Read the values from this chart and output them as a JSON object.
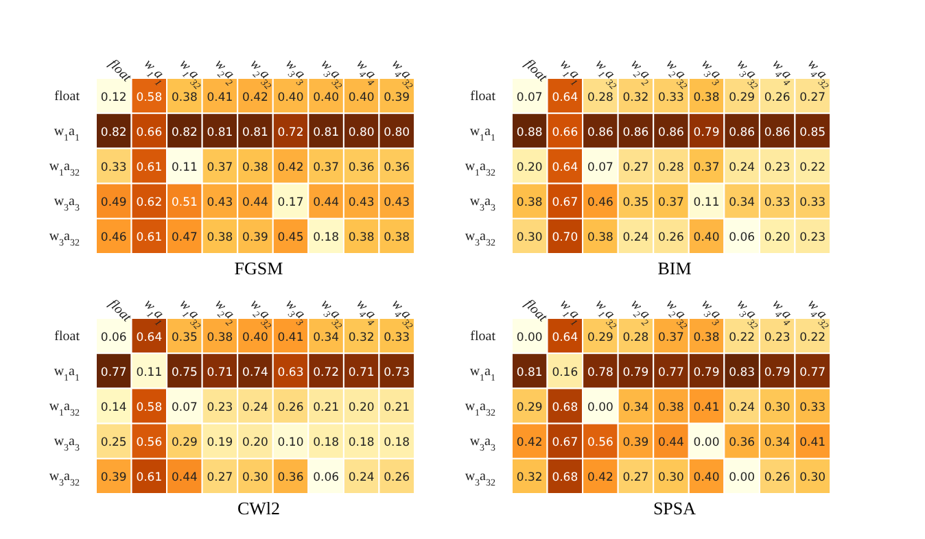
{
  "chart_data": [
    {
      "type": "heatmap",
      "title": "FGSM",
      "categories": [
        "float",
        "w$_{1}$a$_{1}$",
        "w$_{1}$a$_{32}$",
        "w$_{2}$a$_{2}$",
        "w$_{2}$a$_{32}$",
        "w$_{3}$a$_{3}$",
        "w$_{3}$a$_{32}$",
        "w$_{4}$a$_{4}$",
        "w$_{4}$a$_{32}$"
      ],
      "y_categories": [
        "float",
        "w$_{1}$a$_{1}$",
        "w$_{1}$a$_{32}$",
        "w$_{3}$a$_{3}$",
        "w$_{3}$a$_{32}$"
      ],
      "cells": [
        [
          0.12,
          0.58,
          0.38,
          0.41,
          0.42,
          0.4,
          0.4,
          0.4,
          0.39
        ],
        [
          0.82,
          0.66,
          0.82,
          0.81,
          0.81,
          0.72,
          0.81,
          0.8,
          0.8
        ],
        [
          0.33,
          0.61,
          0.11,
          0.37,
          0.38,
          0.42,
          0.37,
          0.36,
          0.36
        ],
        [
          0.49,
          0.62,
          0.51,
          0.43,
          0.44,
          0.17,
          0.44,
          0.43,
          0.43
        ],
        [
          0.46,
          0.61,
          0.47,
          0.38,
          0.39,
          0.45,
          0.18,
          0.38,
          0.38
        ]
      ],
      "cell_labels": [
        [
          "0.12",
          "0.58",
          "0.38",
          "0.41",
          "0.42",
          "0.40",
          "0.40",
          "0.40",
          "0.39"
        ],
        [
          "0.82",
          "0.66",
          "0.82",
          "0.81",
          "0.81",
          "0.72",
          "0.81",
          "0.80",
          "0.80"
        ],
        [
          "0.33",
          "0.61",
          "0.11",
          "0.37",
          "0.38",
          "0.42",
          "0.37",
          "0.36",
          "0.36"
        ],
        [
          "0.49",
          "0.62",
          "0.51",
          "0.43",
          "0.44",
          "0.17",
          "0.44",
          "0.43",
          "0.43"
        ],
        [
          "0.46",
          "0.61",
          "0.47",
          "0.38",
          "0.39",
          "0.45",
          "0.18",
          "0.38",
          "0.38"
        ]
      ]
    },
    {
      "type": "heatmap",
      "title": "BIM",
      "categories": [
        "float",
        "w$_{1}$a$_{1}$",
        "w$_{1}$a$_{32}$",
        "w$_{2}$a$_{2}$",
        "w$_{2}$a$_{32}$",
        "w$_{3}$a$_{3}$",
        "w$_{3}$a$_{32}$",
        "w$_{4}$a$_{4}$",
        "w$_{4}$a$_{32}$"
      ],
      "y_categories": [
        "float",
        "w$_{1}$a$_{1}$",
        "w$_{1}$a$_{32}$",
        "w$_{3}$a$_{3}$",
        "w$_{3}$a$_{32}$"
      ],
      "cells": [
        [
          0.07,
          0.64,
          0.28,
          0.32,
          0.33,
          0.38,
          0.29,
          0.26,
          0.27
        ],
        [
          0.88,
          0.66,
          0.86,
          0.86,
          0.86,
          0.79,
          0.86,
          0.86,
          0.85
        ],
        [
          0.2,
          0.64,
          0.07,
          0.27,
          0.28,
          0.37,
          0.24,
          0.23,
          0.22
        ],
        [
          0.38,
          0.67,
          0.46,
          0.35,
          0.37,
          0.11,
          0.34,
          0.33,
          0.33
        ],
        [
          0.3,
          0.7,
          0.38,
          0.24,
          0.26,
          0.4,
          0.06,
          0.2,
          0.23
        ]
      ],
      "cell_labels": [
        [
          "0.07",
          "0.64",
          "0.28",
          "0.32",
          "0.33",
          "0.38",
          "0.29",
          "0.26",
          "0.27"
        ],
        [
          "0.88",
          "0.66",
          "0.86",
          "0.86",
          "0.86",
          "0.79",
          "0.86",
          "0.86",
          "0.85"
        ],
        [
          "0.20",
          "0.64",
          "0.07",
          "0.27",
          "0.28",
          "0.37",
          "0.24",
          "0.23",
          "0.22"
        ],
        [
          "0.38",
          "0.67",
          "0.46",
          "0.35",
          "0.37",
          "0.11",
          "0.34",
          "0.33",
          "0.33"
        ],
        [
          "0.30",
          "0.70",
          "0.38",
          "0.24",
          "0.26",
          "0.40",
          "0.06",
          "0.20",
          "0.23"
        ]
      ]
    },
    {
      "type": "heatmap",
      "title": "CWl2",
      "categories": [
        "float",
        "w$_{1}$a$_{1}$",
        "w$_{1}$a$_{32}$",
        "w$_{2}$a$_{2}$",
        "w$_{2}$a$_{32}$",
        "w$_{3}$a$_{3}$",
        "w$_{3}$a$_{32}$",
        "w$_{4}$a$_{4}$",
        "w$_{4}$a$_{32}$"
      ],
      "y_categories": [
        "float",
        "w$_{1}$a$_{1}$",
        "w$_{1}$a$_{32}$",
        "w$_{3}$a$_{3}$",
        "w$_{3}$a$_{32}$"
      ],
      "cells": [
        [
          0.06,
          0.64,
          0.35,
          0.38,
          0.4,
          0.41,
          0.34,
          0.32,
          0.33
        ],
        [
          0.77,
          0.11,
          0.75,
          0.71,
          0.74,
          0.63,
          0.72,
          0.71,
          0.73
        ],
        [
          0.14,
          0.58,
          0.07,
          0.23,
          0.24,
          0.26,
          0.21,
          0.2,
          0.21
        ],
        [
          0.25,
          0.56,
          0.29,
          0.19,
          0.2,
          0.1,
          0.18,
          0.18,
          0.18
        ],
        [
          0.39,
          0.61,
          0.44,
          0.27,
          0.3,
          0.36,
          0.06,
          0.24,
          0.26
        ]
      ],
      "cell_labels": [
        [
          "0.06",
          "0.64",
          "0.35",
          "0.38",
          "0.40",
          "0.41",
          "0.34",
          "0.32",
          "0.33"
        ],
        [
          "0.77",
          "0.11",
          "0.75",
          "0.71",
          "0.74",
          "0.63",
          "0.72",
          "0.71",
          "0.73"
        ],
        [
          "0.14",
          "0.58",
          "0.07",
          "0.23",
          "0.24",
          "0.26",
          "0.21",
          "0.20",
          "0.21"
        ],
        [
          "0.25",
          "0.56",
          "0.29",
          "0.19",
          "0.20",
          "0.10",
          "0.18",
          "0.18",
          "0.18"
        ],
        [
          "0.39",
          "0.61",
          "0.44",
          "0.27",
          "0.30",
          "0.36",
          "0.06",
          "0.24",
          "0.26"
        ]
      ]
    },
    {
      "type": "heatmap",
      "title": "SPSA",
      "categories": [
        "float",
        "w$_{1}$a$_{1}$",
        "w$_{1}$a$_{32}$",
        "w$_{2}$a$_{2}$",
        "w$_{2}$a$_{32}$",
        "w$_{3}$a$_{3}$",
        "w$_{3}$a$_{32}$",
        "w$_{4}$a$_{4}$",
        "w$_{4}$a$_{32}$"
      ],
      "y_categories": [
        "float",
        "w$_{1}$a$_{1}$",
        "w$_{1}$a$_{32}$",
        "w$_{3}$a$_{3}$",
        "w$_{3}$a$_{32}$"
      ],
      "cells": [
        [
          0.0,
          0.64,
          0.29,
          0.28,
          0.37,
          0.38,
          0.22,
          0.23,
          0.22
        ],
        [
          0.81,
          0.16,
          0.78,
          0.79,
          0.77,
          0.79,
          0.83,
          0.79,
          0.77
        ],
        [
          0.29,
          0.68,
          0.0,
          0.34,
          0.38,
          0.41,
          0.24,
          0.3,
          0.33
        ],
        [
          0.42,
          0.67,
          0.56,
          0.39,
          0.44,
          0.0,
          0.36,
          0.34,
          0.41
        ],
        [
          0.32,
          0.68,
          0.42,
          0.27,
          0.3,
          0.4,
          0.0,
          0.26,
          0.3
        ]
      ],
      "cell_labels": [
        [
          "0.00",
          "0.64",
          "0.29",
          "0.28",
          "0.37",
          "0.38",
          "0.22",
          "0.23",
          "0.22"
        ],
        [
          "0.81",
          "0.16",
          "0.78",
          "0.79",
          "0.77",
          "0.79",
          "0.83",
          "0.79",
          "0.77"
        ],
        [
          "0.29",
          "0.68",
          "0.00",
          "0.34",
          "0.38",
          "0.41",
          "0.24",
          "0.30",
          "0.33"
        ],
        [
          "0.42",
          "0.67",
          "0.56",
          "0.39",
          "0.44",
          "0.00",
          "0.36",
          "0.34",
          "0.41"
        ],
        [
          "0.32",
          "0.68",
          "0.42",
          "0.27",
          "0.30",
          "0.40",
          "0.00",
          "0.26",
          "0.30"
        ]
      ]
    }
  ]
}
